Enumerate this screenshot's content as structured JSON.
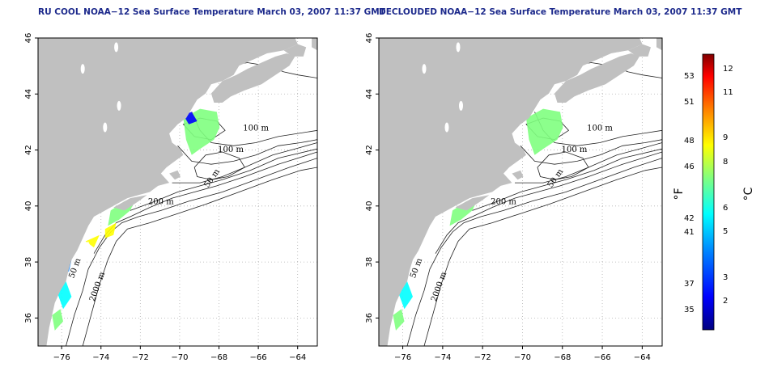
{
  "panels": [
    {
      "id": "left",
      "title": "RU COOL NOAA−12 Sea Surface Temperature March 03, 2007 11:37 GMT",
      "cloud_masked": true
    },
    {
      "id": "right",
      "title": "DECLOUDED NOAA−12 Sea Surface Temperature March 03, 2007 11:37 GMT",
      "cloud_masked": false
    }
  ],
  "axes": {
    "x_ticks": [
      "−76",
      "−74",
      "−72",
      "−70",
      "−68",
      "−66",
      "−64"
    ],
    "y_ticks": [
      "46",
      "44",
      "42",
      "40",
      "38",
      "36"
    ],
    "x_range": [
      -77.2,
      -63.0
    ],
    "y_range": [
      35.0,
      46.0
    ]
  },
  "contours": [
    {
      "label": "100 m"
    },
    {
      "label": "100 m"
    },
    {
      "label": "50 m"
    },
    {
      "label": "200 m"
    },
    {
      "label": "50 m"
    },
    {
      "label": "2000 m"
    }
  ],
  "colorbar": {
    "fahrenheit_unit": "°F",
    "celsius_unit": "°C",
    "fahrenheit_ticks": [
      "53",
      "51",
      "48",
      "46",
      "42",
      "41",
      "37",
      "35"
    ],
    "celsius_ticks": [
      "12",
      "11",
      "9",
      "8",
      "6",
      "5",
      "3",
      "2"
    ],
    "colors": [
      "#000080",
      "#0000ff",
      "#0080ff",
      "#00ffff",
      "#80ff80",
      "#ffff00",
      "#ff8000",
      "#ff0000",
      "#800000"
    ],
    "land_color": "#c0c0c0"
  }
}
